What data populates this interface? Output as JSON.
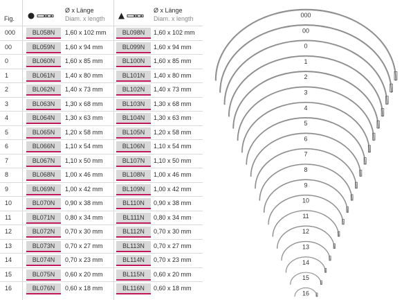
{
  "header": {
    "fig": "Fig.",
    "dim_de": "Ø x Länge",
    "dim_en": "Diam. x length"
  },
  "rows": [
    {
      "fig": "000",
      "code1": "BL058N",
      "dim1": "1,60 x 102 mm",
      "code2": "BL098N",
      "dim2": "1,60 x 102 mm"
    },
    {
      "fig": "00",
      "code1": "BL059N",
      "dim1": "1,60 x 94 mm",
      "code2": "BL099N",
      "dim2": "1,60 x 94 mm"
    },
    {
      "fig": "0",
      "code1": "BL060N",
      "dim1": "1,60 x 85 mm",
      "code2": "BL100N",
      "dim2": "1,60 x 85 mm"
    },
    {
      "fig": "1",
      "code1": "BL061N",
      "dim1": "1,40 x 80 mm",
      "code2": "BL101N",
      "dim2": "1,40 x 80 mm"
    },
    {
      "fig": "2",
      "code1": "BL062N",
      "dim1": "1,40 x 73 mm",
      "code2": "BL102N",
      "dim2": "1,40 x 73 mm"
    },
    {
      "fig": "3",
      "code1": "BL063N",
      "dim1": "1,30 x 68 mm",
      "code2": "BL103N",
      "dim2": "1,30 x 68 mm"
    },
    {
      "fig": "4",
      "code1": "BL064N",
      "dim1": "1,30 x 63 mm",
      "code2": "BL104N",
      "dim2": "1,30 x 63 mm"
    },
    {
      "fig": "5",
      "code1": "BL065N",
      "dim1": "1,20 x 58 mm",
      "code2": "BL105N",
      "dim2": "1,20 x 58 mm"
    },
    {
      "fig": "6",
      "code1": "BL066N",
      "dim1": "1,10 x 54 mm",
      "code2": "BL106N",
      "dim2": "1,10 x 54 mm"
    },
    {
      "fig": "7",
      "code1": "BL067N",
      "dim1": "1,10 x 50 mm",
      "code2": "BL107N",
      "dim2": "1,10 x 50 mm"
    },
    {
      "fig": "8",
      "code1": "BL068N",
      "dim1": "1,00 x 46 mm",
      "code2": "BL108N",
      "dim2": "1,00 x 46 mm"
    },
    {
      "fig": "9",
      "code1": "BL069N",
      "dim1": "1,00 x 42 mm",
      "code2": "BL109N",
      "dim2": "1,00 x 42 mm"
    },
    {
      "fig": "10",
      "code1": "BL070N",
      "dim1": "0,90 x 38 mm",
      "code2": "BL110N",
      "dim2": "0,90 x 38 mm"
    },
    {
      "fig": "11",
      "code1": "BL071N",
      "dim1": "0,80 x 34 mm",
      "code2": "BL111N",
      "dim2": "0,80 x 34 mm"
    },
    {
      "fig": "12",
      "code1": "BL072N",
      "dim1": "0,70 x 30 mm",
      "code2": "BL112N",
      "dim2": "0,70 x 30 mm"
    },
    {
      "fig": "13",
      "code1": "BL073N",
      "dim1": "0,70 x 27 mm",
      "code2": "BL113N",
      "dim2": "0,70 x 27 mm"
    },
    {
      "fig": "14",
      "code1": "BL074N",
      "dim1": "0,70 x 23 mm",
      "code2": "BL114N",
      "dim2": "0,70 x 23 mm"
    },
    {
      "fig": "15",
      "code1": "BL075N",
      "dim1": "0,60 x 20 mm",
      "code2": "BL115N",
      "dim2": "0,60 x 20 mm"
    },
    {
      "fig": "16",
      "code1": "BL076N",
      "dim1": "0,60 x 18 mm",
      "code2": "BL116N",
      "dim2": "0,60 x 18 mm"
    }
  ],
  "needles": {
    "labels": [
      "000",
      "00",
      "0",
      "1",
      "2",
      "3",
      "4",
      "5",
      "6",
      "7",
      "8",
      "9",
      "10",
      "11",
      "12",
      "13",
      "14",
      "15",
      "16"
    ]
  },
  "icons": {
    "round_body": "round-body-needle-icon",
    "cutting": "cutting-needle-icon"
  },
  "colors": {
    "accent_underline": "#c2185b",
    "code_bg": "#d8d8d8",
    "needle_steel": "#8c8c8c"
  }
}
